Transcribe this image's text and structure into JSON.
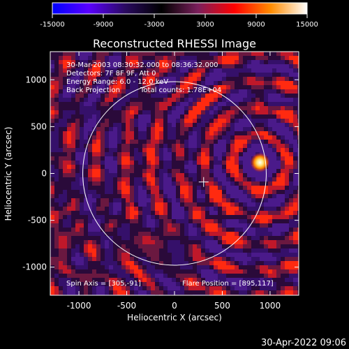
{
  "chart_data": {
    "type": "heatmap",
    "title": "Reconstructed RHESSI Image",
    "xlabel": "Heliocentric X (arcsec)",
    "ylabel": "Heliocentric Y (arcsec)",
    "xlim": [
      -1300,
      1300
    ],
    "ylim": [
      -1300,
      1300
    ],
    "x_ticks": [
      -1000,
      -500,
      0,
      500,
      1000
    ],
    "y_ticks": [
      -1000,
      -500,
      0,
      500,
      1000
    ],
    "colorbar": {
      "range": [
        -15000,
        15000
      ],
      "ticks": [
        "-15000",
        "-9000",
        "-3000",
        "3000",
        "9000",
        "15000"
      ],
      "colors": [
        "#0000ff",
        "#5a00ff",
        "#2a0a60",
        "#000000",
        "#7a1f5c",
        "#ff0000",
        "#ff8c00",
        "#ffffff"
      ]
    },
    "annotations": {
      "time_range": "30-Mar-2003 08:30:32.000 to 08:36:32.000",
      "detectors": "Detectors: 7F 8F 9F, Att 0",
      "energy_range": "Energy Range: 6.0 - 12.0 keV",
      "method": "Back Projection",
      "total_counts": "Total counts: 1.78E+04",
      "spin_axis": "Spin Axis = [305,-91]",
      "flare_position": "Flare Position = [895,117]"
    },
    "solar_disk": {
      "center": [
        0,
        0
      ],
      "radius": 960
    },
    "spin_axis": [
      305,
      -91
    ],
    "flare": {
      "position": [
        895,
        117
      ],
      "peak": 15000
    }
  },
  "timestamp": "30-Apr-2022 09:06"
}
